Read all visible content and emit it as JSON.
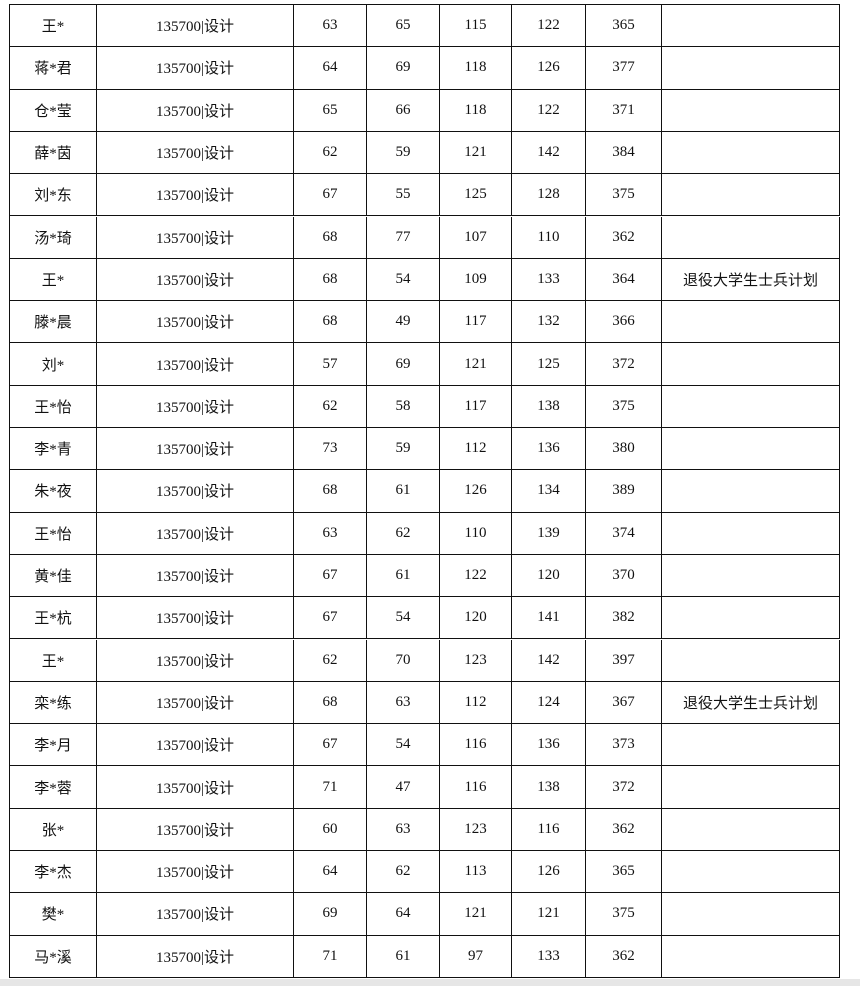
{
  "table": {
    "rows": [
      [
        "王*",
        "135700|设计",
        63,
        65,
        115,
        122,
        365
      ],
      [
        "蒋*君",
        "135700|设计",
        64,
        69,
        118,
        126,
        377
      ],
      [
        "仓*莹",
        "135700|设计",
        65,
        66,
        118,
        122,
        371
      ],
      [
        "薛*茵",
        "135700|设计",
        62,
        59,
        121,
        142,
        384
      ],
      [
        "刘*东",
        "135700|设计",
        67,
        55,
        125,
        128,
        375
      ],
      [
        "汤*琦",
        "135700|设计",
        68,
        77,
        107,
        110,
        362
      ],
      [
        "王*",
        "135700|设计",
        68,
        54,
        109,
        133,
        364,
        "退役大学生士兵计划"
      ],
      [
        "滕*晨",
        "135700|设计",
        68,
        49,
        117,
        132,
        366
      ],
      [
        "刘*",
        "135700|设计",
        57,
        69,
        121,
        125,
        372
      ],
      [
        "王*怡",
        "135700|设计",
        62,
        58,
        117,
        138,
        375
      ],
      [
        "李*青",
        "135700|设计",
        73,
        59,
        112,
        136,
        380
      ],
      [
        "朱*夜",
        "135700|设计",
        68,
        61,
        126,
        134,
        389
      ],
      [
        "王*怡",
        "135700|设计",
        63,
        62,
        110,
        139,
        374
      ],
      [
        "黄*佳",
        "135700|设计",
        67,
        61,
        122,
        120,
        370
      ],
      [
        "王*杭",
        "135700|设计",
        67,
        54,
        120,
        141,
        382
      ],
      [
        "王*",
        "135700|设计",
        62,
        70,
        123,
        142,
        397
      ],
      [
        "栾*练",
        "135700|设计",
        68,
        63,
        112,
        124,
        367,
        "退役大学生士兵计划"
      ],
      [
        "李*月",
        "135700|设计",
        67,
        54,
        116,
        136,
        373
      ],
      [
        "李*蓉",
        "135700|设计",
        71,
        47,
        116,
        138,
        372
      ],
      [
        "张*",
        "135700|设计",
        60,
        63,
        123,
        116,
        362
      ],
      [
        "李*杰",
        "135700|设计",
        64,
        62,
        113,
        126,
        365
      ],
      [
        "樊*",
        "135700|设计",
        69,
        64,
        121,
        121,
        375
      ],
      [
        "马*溪",
        "135700|设计",
        71,
        61,
        97,
        133,
        362
      ]
    ]
  }
}
